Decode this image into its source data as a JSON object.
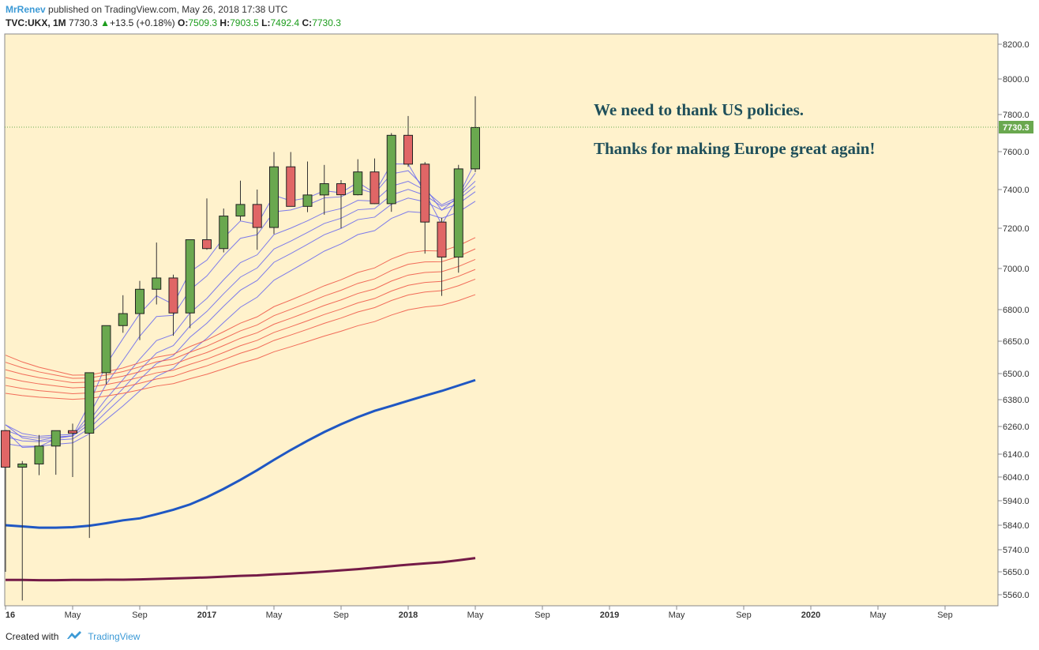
{
  "header": {
    "author": "MrRenev",
    "published": "published on TradingView.com, May 26, 2018 17:38 UTC",
    "symbol": "TVC:UKX, 1M",
    "last": "7730.3",
    "change": "+13.5 (+0.18%)",
    "open_label": "O:",
    "open": "7509.3",
    "high_label": "H:",
    "high": "7903.5",
    "low_label": "L:",
    "low": "7492.4",
    "close_label": "C:",
    "close": "7730.3"
  },
  "annotations": {
    "line1": "We need to thank US policies.",
    "line2": "Thanks for making Europe great again!"
  },
  "footer": {
    "created_with": "Created with",
    "brand": "TradingView"
  },
  "colors": {
    "background": "#fff2cc",
    "up": "#6aa84f",
    "down": "#e06666",
    "wick": "#333333",
    "blue_ma": "#1f57c3",
    "maroon_ma": "#741b47",
    "thin_blue": "#6666ee",
    "thin_red": "#ee5544"
  },
  "chart_data": {
    "type": "candlestick",
    "price_label": "7730.3",
    "y_ticks": [
      "8200.0",
      "8000.0",
      "7800.0",
      "7600.0",
      "7400.0",
      "7200.0",
      "7000.0",
      "6800.0",
      "6650.0",
      "6500.0",
      "6380.0",
      "6260.0",
      "6140.0",
      "6040.0",
      "5940.0",
      "5840.0",
      "5740.0",
      "5650.0",
      "5560.0"
    ],
    "x_ticks": [
      "16",
      "May",
      "Sep",
      "2017",
      "May",
      "Sep",
      "2018",
      "May",
      "Sep",
      "2019",
      "May",
      "Sep",
      "2020",
      "May",
      "Sep"
    ],
    "candles": [
      {
        "date": "2016-01",
        "o": 6242,
        "h": 6242,
        "l": 5650,
        "c": 6083
      },
      {
        "date": "2016-02",
        "o": 6083,
        "h": 6110,
        "l": 5537,
        "c": 6097
      },
      {
        "date": "2016-03",
        "o": 6097,
        "h": 6223,
        "l": 6048,
        "c": 6175
      },
      {
        "date": "2016-04",
        "o": 6175,
        "h": 6241,
        "l": 6050,
        "c": 6242
      },
      {
        "date": "2016-05",
        "o": 6242,
        "h": 6273,
        "l": 6040,
        "c": 6231
      },
      {
        "date": "2016-06",
        "o": 6231,
        "h": 6505,
        "l": 5788,
        "c": 6504
      },
      {
        "date": "2016-07",
        "o": 6504,
        "h": 6725,
        "l": 6450,
        "c": 6724
      },
      {
        "date": "2016-08",
        "o": 6724,
        "h": 6870,
        "l": 6690,
        "c": 6781
      },
      {
        "date": "2016-09",
        "o": 6781,
        "h": 6940,
        "l": 6655,
        "c": 6899
      },
      {
        "date": "2016-10",
        "o": 6899,
        "h": 7129,
        "l": 6825,
        "c": 6954
      },
      {
        "date": "2016-11",
        "o": 6954,
        "h": 6970,
        "l": 6676,
        "c": 6784
      },
      {
        "date": "2016-12",
        "o": 6784,
        "h": 7143,
        "l": 6712,
        "c": 7143
      },
      {
        "date": "2017-01",
        "o": 7143,
        "h": 7354,
        "l": 7093,
        "c": 7099
      },
      {
        "date": "2017-02",
        "o": 7099,
        "h": 7302,
        "l": 7080,
        "c": 7263
      },
      {
        "date": "2017-03",
        "o": 7263,
        "h": 7447,
        "l": 7240,
        "c": 7323
      },
      {
        "date": "2017-04",
        "o": 7323,
        "h": 7400,
        "l": 7093,
        "c": 7204
      },
      {
        "date": "2017-05",
        "o": 7204,
        "h": 7598,
        "l": 7171,
        "c": 7520
      },
      {
        "date": "2017-06",
        "o": 7520,
        "h": 7598,
        "l": 7313,
        "c": 7313
      },
      {
        "date": "2017-07",
        "o": 7313,
        "h": 7548,
        "l": 7283,
        "c": 7372
      },
      {
        "date": "2017-08",
        "o": 7372,
        "h": 7530,
        "l": 7270,
        "c": 7431
      },
      {
        "date": "2017-09",
        "o": 7431,
        "h": 7450,
        "l": 7200,
        "c": 7373
      },
      {
        "date": "2017-10",
        "o": 7373,
        "h": 7560,
        "l": 7370,
        "c": 7493
      },
      {
        "date": "2017-11",
        "o": 7493,
        "h": 7564,
        "l": 7325,
        "c": 7327
      },
      {
        "date": "2017-12",
        "o": 7327,
        "h": 7700,
        "l": 7285,
        "c": 7688
      },
      {
        "date": "2018-01",
        "o": 7688,
        "h": 7792,
        "l": 7520,
        "c": 7534
      },
      {
        "date": "2018-02",
        "o": 7534,
        "h": 7545,
        "l": 7074,
        "c": 7232
      },
      {
        "date": "2018-03",
        "o": 7232,
        "h": 7254,
        "l": 6867,
        "c": 7057
      },
      {
        "date": "2018-04",
        "o": 7057,
        "h": 7530,
        "l": 6980,
        "c": 7509
      },
      {
        "date": "2018-05",
        "o": 7509,
        "h": 7903,
        "l": 7492,
        "c": 7730
      }
    ],
    "series": [
      {
        "values": [
          5840,
          5835,
          5830,
          5830,
          5832,
          5838,
          5848,
          5860,
          5868,
          5885,
          5903,
          5925,
          5955,
          5990,
          6028,
          6070,
          6115,
          6158,
          6198,
          6236,
          6270,
          6302,
          6330,
          6352,
          6375,
          6398,
          6420,
          6445,
          6470
        ]
      },
      {
        "values": [
          5618,
          5618,
          5617,
          5617,
          5618,
          5618,
          5619,
          5619,
          5620,
          5622,
          5624,
          5626,
          5628,
          5631,
          5634,
          5636,
          5640,
          5643,
          5647,
          5651,
          5656,
          5661,
          5667,
          5673,
          5679,
          5684,
          5689,
          5697,
          5706
        ]
      }
    ]
  }
}
